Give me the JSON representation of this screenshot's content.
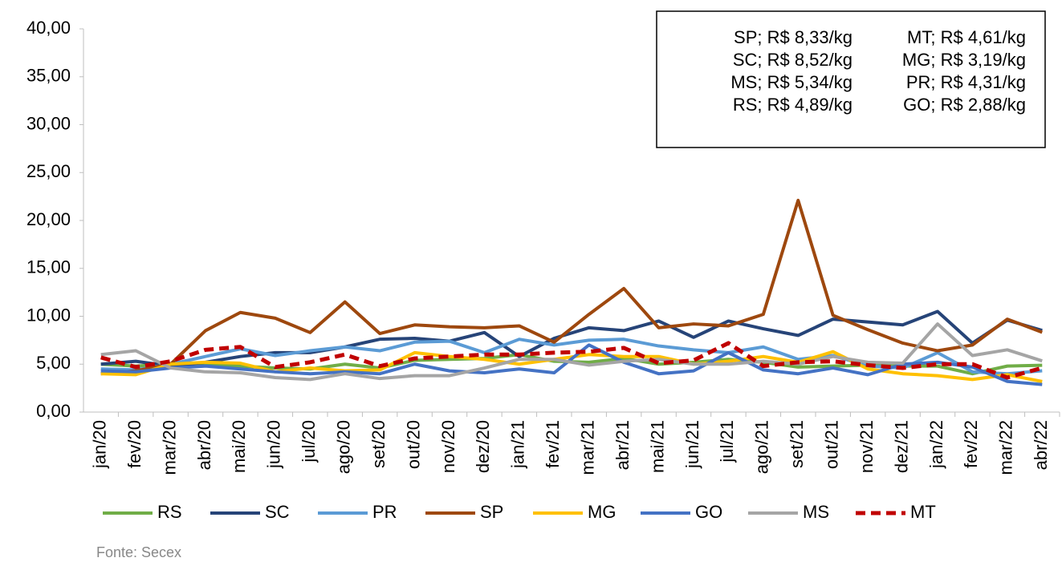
{
  "chart_data": {
    "type": "line",
    "categories": [
      "jan/20",
      "fev/20",
      "mar/20",
      "abr/20",
      "mai/20",
      "jun/20",
      "jul/20",
      "ago/20",
      "set/20",
      "out/20",
      "nov/20",
      "dez/20",
      "jan/21",
      "fev/21",
      "mar/21",
      "abr/21",
      "mai/21",
      "jun/21",
      "jul/21",
      "ago/21",
      "set/21",
      "out/21",
      "nov/21",
      "dez/21",
      "jan/22",
      "fev/22",
      "mar/22",
      "abr/22"
    ],
    "series": [
      {
        "name": "RS",
        "color": "#70ad47",
        "values": [
          5.0,
          4.8,
          5.0,
          5.0,
          4.8,
          4.6,
          4.5,
          5.0,
          4.6,
          5.4,
          5.5,
          5.6,
          6.0,
          5.3,
          5.2,
          5.6,
          5.0,
          5.2,
          5.5,
          5.2,
          4.7,
          4.8,
          4.9,
          4.8,
          4.8,
          4.0,
          4.8,
          4.89
        ]
      },
      {
        "name": "SC",
        "color": "#264478",
        "values": [
          5.0,
          5.3,
          4.8,
          5.2,
          5.8,
          6.2,
          6.2,
          6.8,
          7.6,
          7.7,
          7.4,
          8.3,
          5.8,
          7.7,
          8.8,
          8.5,
          9.5,
          7.8,
          9.5,
          8.7,
          8.0,
          9.7,
          9.4,
          9.1,
          10.5,
          7.2,
          9.6,
          8.52
        ]
      },
      {
        "name": "PR",
        "color": "#5b9bd5",
        "values": [
          4.5,
          4.4,
          5.0,
          5.8,
          6.6,
          5.9,
          6.4,
          6.8,
          6.4,
          7.3,
          7.4,
          6.2,
          7.6,
          7.0,
          7.5,
          7.6,
          6.9,
          6.5,
          6.2,
          6.8,
          5.5,
          5.9,
          4.8,
          4.6,
          6.2,
          4.2,
          4.0,
          4.31
        ]
      },
      {
        "name": "SP",
        "color": "#9e480e",
        "values": [
          4.0,
          4.3,
          5.0,
          8.5,
          10.4,
          9.8,
          8.3,
          11.5,
          8.2,
          9.1,
          8.9,
          8.8,
          9.0,
          7.3,
          10.2,
          12.9,
          8.8,
          9.2,
          9.0,
          10.2,
          22.1,
          10.1,
          8.6,
          7.2,
          6.4,
          7.0,
          9.7,
          8.33
        ]
      },
      {
        "name": "MG",
        "color": "#ffc000",
        "values": [
          4.0,
          3.9,
          5.0,
          5.2,
          5.1,
          4.2,
          4.6,
          4.3,
          4.4,
          6.2,
          5.8,
          5.5,
          5.0,
          5.5,
          6.0,
          5.8,
          5.8,
          5.0,
          5.3,
          5.8,
          5.2,
          6.3,
          4.5,
          4.0,
          3.8,
          3.4,
          3.9,
          3.19
        ]
      },
      {
        "name": "GO",
        "color": "#4472c4",
        "values": [
          4.3,
          4.2,
          4.6,
          4.8,
          4.5,
          4.2,
          4.0,
          4.2,
          4.0,
          5.0,
          4.3,
          4.1,
          4.5,
          4.1,
          7.0,
          5.2,
          4.0,
          4.3,
          6.2,
          4.4,
          4.0,
          4.6,
          3.9,
          5.0,
          5.2,
          4.7,
          3.2,
          2.88
        ]
      },
      {
        "name": "MS",
        "color": "#a5a5a5",
        "values": [
          6.0,
          6.4,
          4.6,
          4.2,
          4.1,
          3.6,
          3.4,
          4.0,
          3.5,
          3.8,
          3.8,
          4.6,
          5.5,
          5.5,
          4.9,
          5.3,
          5.5,
          5.0,
          5.0,
          5.3,
          5.0,
          5.8,
          5.2,
          5.1,
          9.2,
          5.9,
          6.5,
          5.34
        ]
      },
      {
        "name": "MT",
        "color": "#c00000",
        "dashed": true,
        "values": [
          5.7,
          4.7,
          5.3,
          6.5,
          6.8,
          4.7,
          5.2,
          6.0,
          4.8,
          5.6,
          5.8,
          6.0,
          6.0,
          6.2,
          6.3,
          6.7,
          5.1,
          5.4,
          7.2,
          4.8,
          5.2,
          5.3,
          4.9,
          4.6,
          5.0,
          5.0,
          3.6,
          4.61
        ]
      }
    ],
    "ylim": [
      0,
      40
    ],
    "yticks": [
      {
        "value": 0,
        "label": "0,00"
      },
      {
        "value": 5,
        "label": "5,00"
      },
      {
        "value": 10,
        "label": "10,00"
      },
      {
        "value": 15,
        "label": "15,00"
      },
      {
        "value": 20,
        "label": "20,00"
      },
      {
        "value": 25,
        "label": "25,00"
      },
      {
        "value": 30,
        "label": "30,00"
      },
      {
        "value": 35,
        "label": "35,00"
      },
      {
        "value": 40,
        "label": "40,00"
      }
    ],
    "annotations": [
      "SP; R$ 8,33/kg",
      "MT; R$ 4,61/kg",
      "SC; R$ 8,52/kg",
      "MG; R$ 3,19/kg",
      "MS; R$ 5,34/kg",
      "PR; R$ 4,31/kg",
      "RS; R$ 4,89/kg",
      "GO; R$ 2,88/kg"
    ],
    "source": "Fonte: Secex"
  }
}
